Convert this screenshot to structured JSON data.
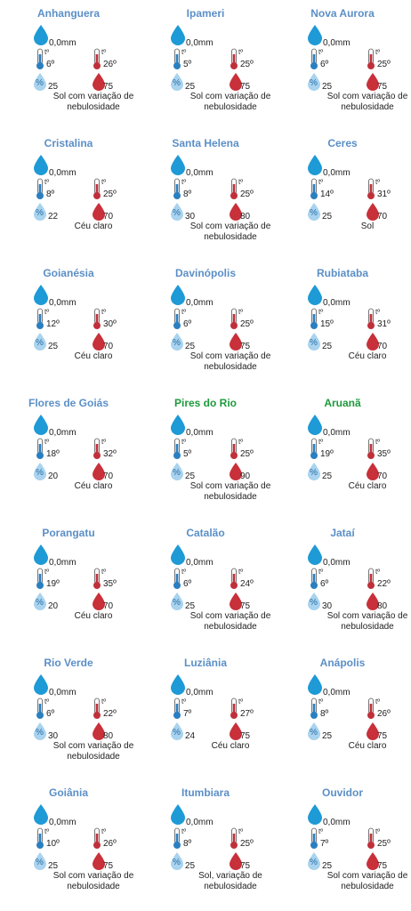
{
  "icon_labels": {
    "temperature": "tº",
    "humidity": "%"
  },
  "cities": [
    {
      "name": "Anhanguera",
      "color": "#5b8fc7",
      "rain": "0,0mm",
      "temp_min": "6º",
      "temp_max": "26º",
      "humidity_min": 25,
      "humidity_max": 75,
      "condition": "Sol com variação de nebulosidade"
    },
    {
      "name": "Ipameri",
      "color": "#5b8fc7",
      "rain": "0,0mm",
      "temp_min": "5º",
      "temp_max": "25º",
      "humidity_min": 25,
      "humidity_max": 75,
      "condition": "Sol com variação de nebulosidade"
    },
    {
      "name": "Nova Aurora",
      "color": "#5b8fc7",
      "rain": "0,0mm",
      "temp_min": "6º",
      "temp_max": "25º",
      "humidity_min": 25,
      "humidity_max": 75,
      "condition": "Sol com variação de nebulosidade"
    },
    {
      "name": "Cristalina",
      "color": "#5b8fc7",
      "rain": "0,0mm",
      "temp_min": "8º",
      "temp_max": "25º",
      "humidity_min": 22,
      "humidity_max": 70,
      "condition": "Céu claro"
    },
    {
      "name": "Santa Helena",
      "color": "#5b8fc7",
      "rain": "0,0mm",
      "temp_min": "8º",
      "temp_max": "25º",
      "humidity_min": 30,
      "humidity_max": 80,
      "condition": "Sol com variação de nebulosidade"
    },
    {
      "name": "Ceres",
      "color": "#5b8fc7",
      "rain": "0,0mm",
      "temp_min": "14º",
      "temp_max": "31º",
      "humidity_min": 25,
      "humidity_max": 70,
      "condition": "Sol"
    },
    {
      "name": "Goianésia",
      "color": "#5b8fc7",
      "rain": "0,0mm",
      "temp_min": "12º",
      "temp_max": "30º",
      "humidity_min": 25,
      "humidity_max": 70,
      "condition": "Céu claro"
    },
    {
      "name": "Davinópolis",
      "color": "#5b8fc7",
      "rain": "0,0mm",
      "temp_min": "6º",
      "temp_max": "25º",
      "humidity_min": 25,
      "humidity_max": 75,
      "condition": "Sol com variação de nebulosidade"
    },
    {
      "name": "Rubiataba",
      "color": "#5b8fc7",
      "rain": "0,0mm",
      "temp_min": "15º",
      "temp_max": "31º",
      "humidity_min": 25,
      "humidity_max": 70,
      "condition": "Céu claro"
    },
    {
      "name": "Flores de Goiás",
      "color": "#5b8fc7",
      "rain": "0,0mm",
      "temp_min": "18º",
      "temp_max": "32º",
      "humidity_min": 20,
      "humidity_max": 70,
      "condition": "Céu claro"
    },
    {
      "name": "Pires do Rio",
      "color": "#1e9a3c",
      "rain": "0,0mm",
      "temp_min": "5º",
      "temp_max": "25º",
      "humidity_min": 25,
      "humidity_max": 90,
      "condition": "Sol com variação de nebulosidade"
    },
    {
      "name": "Aruanã",
      "color": "#1e9a3c",
      "rain": "0,0mm",
      "temp_min": "19º",
      "temp_max": "35º",
      "humidity_min": 25,
      "humidity_max": 70,
      "condition": "Céu claro"
    },
    {
      "name": "Porangatu",
      "color": "#5b8fc7",
      "rain": "0,0mm",
      "temp_min": "19º",
      "temp_max": "35º",
      "humidity_min": 20,
      "humidity_max": 70,
      "condition": "Céu claro"
    },
    {
      "name": "Catalão",
      "color": "#5b8fc7",
      "rain": "0,0mm",
      "temp_min": "6º",
      "temp_max": "24º",
      "humidity_min": 25,
      "humidity_max": 75,
      "condition": "Sol com variação de nebulosidade"
    },
    {
      "name": "Jataí",
      "color": "#5b8fc7",
      "rain": "0,0mm",
      "temp_min": "6º",
      "temp_max": "22º",
      "humidity_min": 30,
      "humidity_max": 80,
      "condition": "Sol com variação de nebulosidade"
    },
    {
      "name": "Rio Verde",
      "color": "#5b8fc7",
      "rain": "0,0mm",
      "temp_min": "6º",
      "temp_max": "22º",
      "humidity_min": 30,
      "humidity_max": 80,
      "condition": "Sol com variação de nebulosidade"
    },
    {
      "name": "Luziânia",
      "color": "#5b8fc7",
      "rain": "0,0mm",
      "temp_min": "7º",
      "temp_max": "27º",
      "humidity_min": 24,
      "humidity_max": 75,
      "condition": "Céu claro"
    },
    {
      "name": "Anápolis",
      "color": "#5b8fc7",
      "rain": "0,0mm",
      "temp_min": "8º",
      "temp_max": "26º",
      "humidity_min": 25,
      "humidity_max": 75,
      "condition": "Céu claro"
    },
    {
      "name": "Goiânia",
      "color": "#5b8fc7",
      "rain": "0,0mm",
      "temp_min": "10º",
      "temp_max": "26º",
      "humidity_min": 25,
      "humidity_max": 75,
      "condition": "Sol com variação de nebulosidade"
    },
    {
      "name": "Itumbiara",
      "color": "#5b8fc7",
      "rain": "0,0mm",
      "temp_min": "8º",
      "temp_max": "25º",
      "humidity_min": 25,
      "humidity_max": 75,
      "condition": "Sol, variação de nebulosidade"
    },
    {
      "name": "Ouvidor",
      "color": "#5b8fc7",
      "rain": "0,0mm",
      "temp_min": "7º",
      "temp_max": "25º",
      "humidity_min": 25,
      "humidity_max": 75,
      "condition": "Sol com variação de nebulosidade"
    }
  ]
}
